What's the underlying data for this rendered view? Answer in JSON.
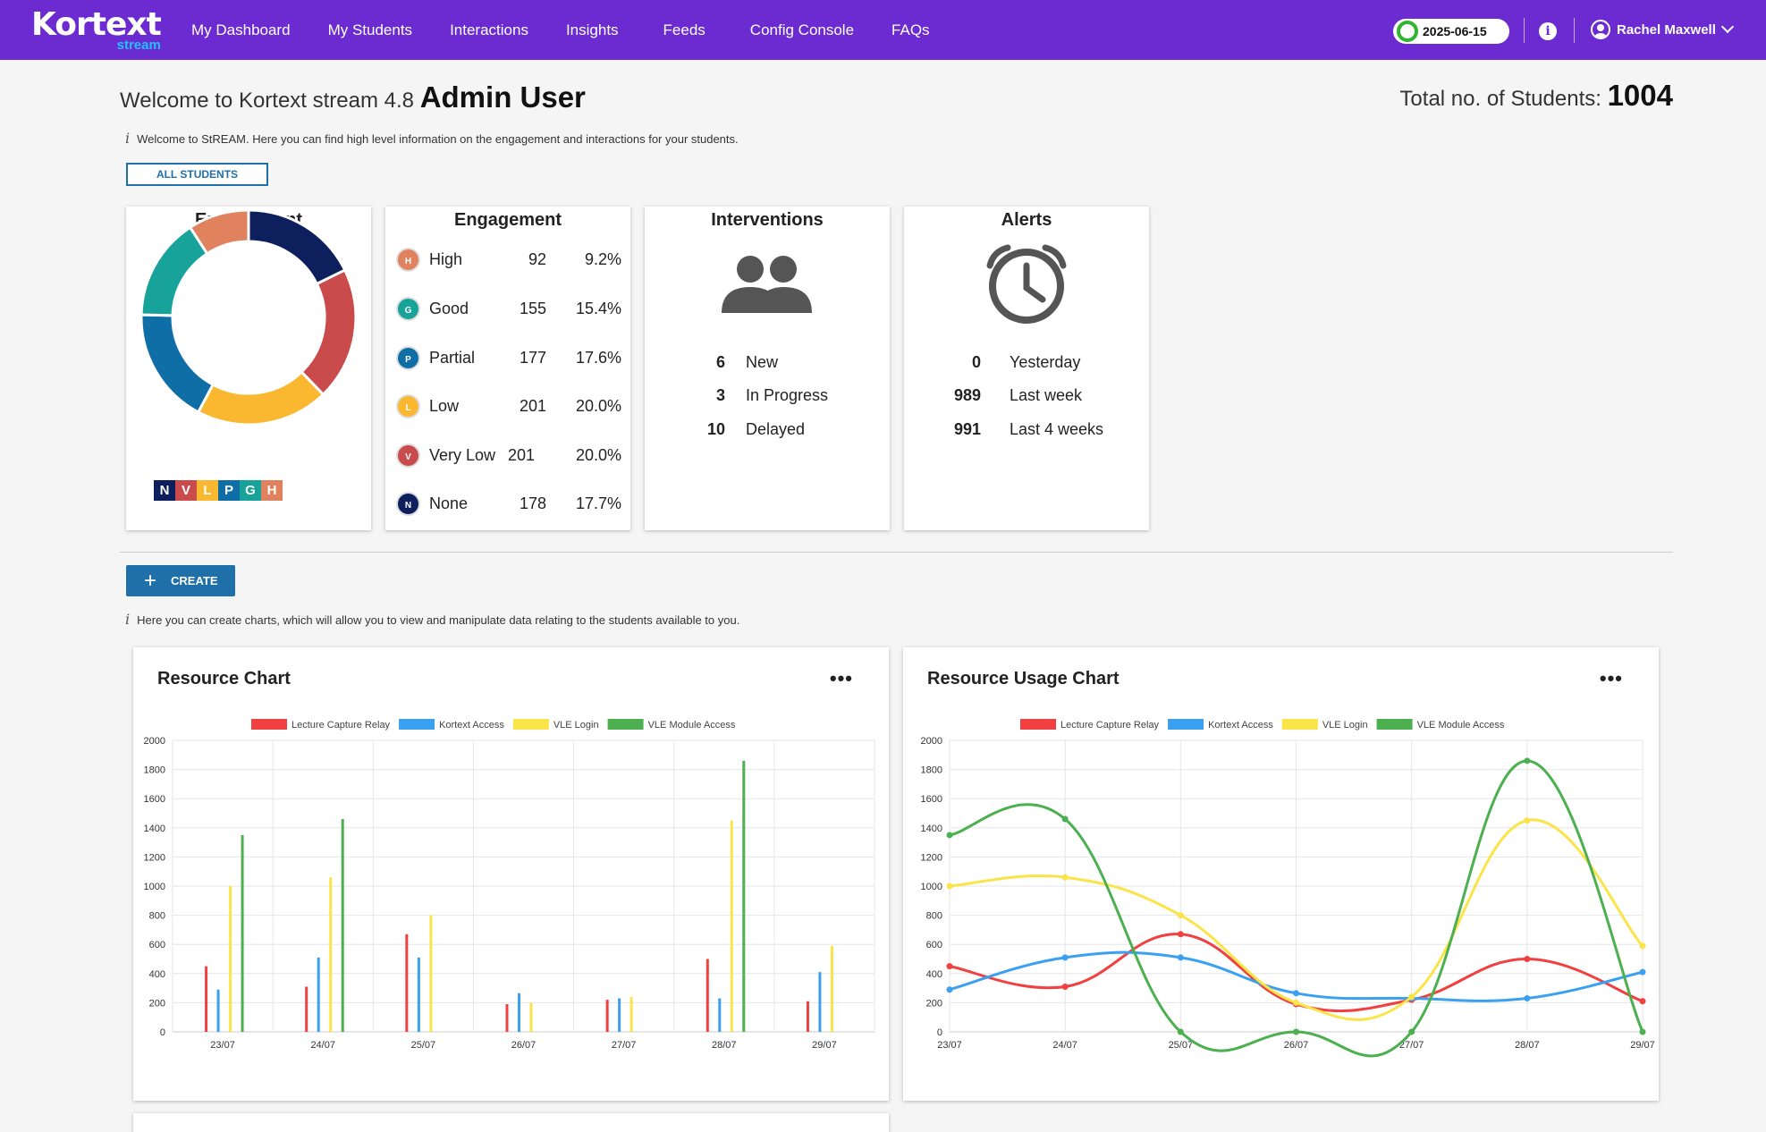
{
  "nav": {
    "logo_word": "Kortext",
    "logo_sub": "stream",
    "items": [
      "My Dashboard",
      "My Students",
      "Interactions",
      "Insights",
      "Feeds",
      "Config Console",
      "FAQs"
    ],
    "date": "2025-06-15",
    "user": "Rachel Maxwell"
  },
  "header": {
    "welcome_prefix": "Welcome to Kortext stream 4.8",
    "welcome_user": "Admin User",
    "total_label": "Total no. of Students:",
    "total_value": "1004",
    "info1": "Welcome to StREAM. Here you can find high level information on the engagement and interactions for your students.",
    "all_students": "ALL STUDENTS",
    "create": "CREATE",
    "info2": "Here you can create charts, which will allow you to view and manipulate data relating to the students available to you."
  },
  "colors": {
    "none": "#0d1f5c",
    "very_low": "#c94b4b",
    "low": "#f9b830",
    "partial": "#0e6ea5",
    "good": "#17a39a",
    "high": "#e0825e",
    "lecture": "#f04040",
    "kortext": "#3aa0ef",
    "vle_login": "#fbe44a",
    "vle_module": "#4caf50"
  },
  "engagement_donut": {
    "title": "Engagement",
    "legend": [
      "N",
      "V",
      "L",
      "P",
      "G",
      "H"
    ]
  },
  "engagement_table": {
    "title": "Engagement",
    "rows": [
      {
        "badge": "H",
        "name": "High",
        "count": "92",
        "pct": "9.2%"
      },
      {
        "badge": "G",
        "name": "Good",
        "count": "155",
        "pct": "15.4%"
      },
      {
        "badge": "P",
        "name": "Partial",
        "count": "177",
        "pct": "17.6%"
      },
      {
        "badge": "L",
        "name": "Low",
        "count": "201",
        "pct": "20.0%"
      },
      {
        "badge": "V",
        "name": "Very Low",
        "count": "201",
        "pct": "20.0%"
      },
      {
        "badge": "N",
        "name": "None",
        "count": "178",
        "pct": "17.7%"
      }
    ]
  },
  "interventions": {
    "title": "Interventions",
    "rows": [
      {
        "n": "6",
        "label": "New"
      },
      {
        "n": "3",
        "label": "In Progress"
      },
      {
        "n": "10",
        "label": "Delayed"
      }
    ]
  },
  "alerts": {
    "title": "Alerts",
    "rows": [
      {
        "n": "0",
        "label": "Yesterday"
      },
      {
        "n": "989",
        "label": "Last week"
      },
      {
        "n": "991",
        "label": "Last 4 weeks"
      }
    ]
  },
  "chart_data": [
    {
      "type": "pie",
      "title": "Engagement",
      "categories": [
        "None",
        "Very Low",
        "Low",
        "Partial",
        "Good",
        "High"
      ],
      "values": [
        178,
        201,
        201,
        177,
        155,
        92
      ]
    },
    {
      "type": "bar",
      "title": "Resource Chart",
      "categories": [
        "23/07",
        "24/07",
        "25/07",
        "26/07",
        "27/07",
        "28/07",
        "29/07"
      ],
      "ylim": [
        0,
        2000
      ],
      "yticks": [
        "0",
        "200",
        "400",
        "600",
        "800",
        "1000",
        "1200",
        "1400",
        "1600",
        "1800",
        "2000"
      ],
      "series": [
        {
          "name": "Lecture Capture Relay",
          "values": [
            450,
            310,
            670,
            190,
            220,
            500,
            210
          ]
        },
        {
          "name": "Kortext Access",
          "values": [
            290,
            510,
            510,
            265,
            230,
            230,
            410
          ]
        },
        {
          "name": "VLE Login",
          "values": [
            1000,
            1060,
            800,
            200,
            240,
            1450,
            590
          ]
        },
        {
          "name": "VLE Module Access",
          "values": [
            1350,
            1460,
            0,
            0,
            0,
            1860,
            0
          ]
        }
      ],
      "grid": true,
      "legend": "top"
    },
    {
      "type": "line",
      "title": "Resource Usage Chart",
      "categories": [
        "23/07",
        "24/07",
        "25/07",
        "26/07",
        "27/07",
        "28/07",
        "29/07"
      ],
      "ylim": [
        0,
        2000
      ],
      "yticks": [
        "0",
        "200",
        "400",
        "600",
        "800",
        "1000",
        "1200",
        "1400",
        "1600",
        "1800",
        "2000"
      ],
      "series": [
        {
          "name": "Lecture Capture Relay",
          "values": [
            450,
            310,
            670,
            190,
            220,
            500,
            210
          ]
        },
        {
          "name": "Kortext Access",
          "values": [
            290,
            510,
            510,
            265,
            230,
            230,
            410
          ]
        },
        {
          "name": "VLE Login",
          "values": [
            1000,
            1060,
            800,
            200,
            240,
            1450,
            590
          ]
        },
        {
          "name": "VLE Module Access",
          "values": [
            1350,
            1460,
            0,
            0,
            0,
            1860,
            0
          ]
        }
      ],
      "grid": true,
      "legend": "top"
    }
  ]
}
